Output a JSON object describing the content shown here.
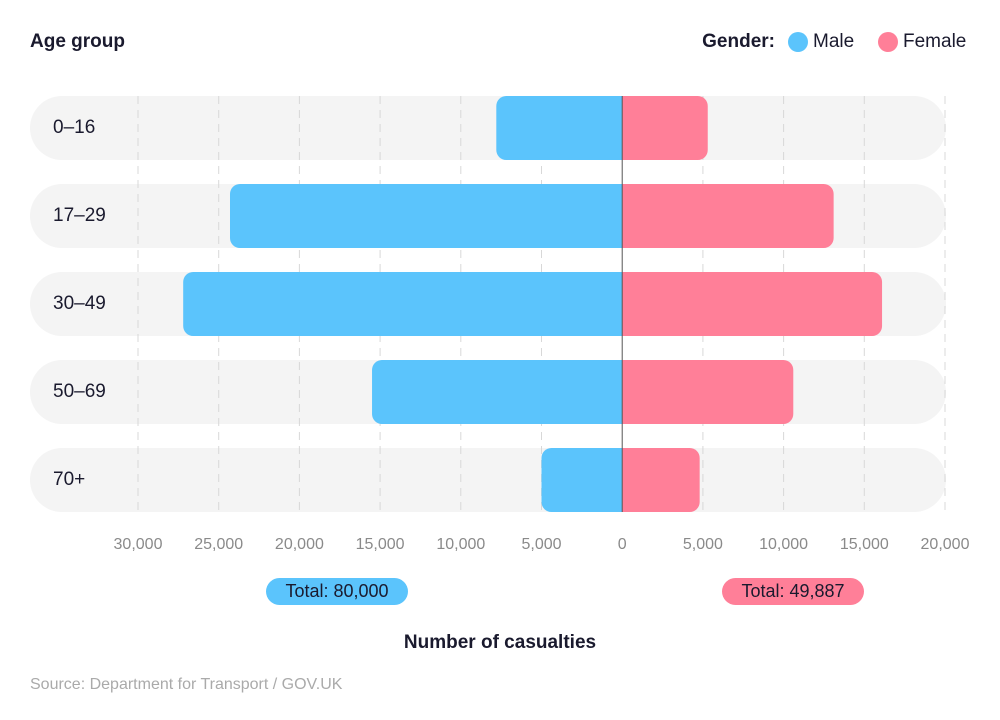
{
  "chart_data": {
    "type": "pyramid",
    "title": "Age group",
    "legend_title": "Gender:",
    "x_label": "Number of casualties",
    "source": "Source: Department for Transport / GOV.UK",
    "categories": [
      "0–16",
      "17–29",
      "30–49",
      "50–69",
      "70+"
    ],
    "series": [
      {
        "name": "Male",
        "color": "#5bc4fc",
        "side": "left",
        "values": [
          7800,
          24300,
          27200,
          15500,
          5000
        ],
        "total_label": "Total: 80,000"
      },
      {
        "name": "Female",
        "color": "#ff7f98",
        "side": "right",
        "values": [
          5300,
          13100,
          16100,
          10600,
          4800
        ],
        "total_label": "Total: 49,887"
      }
    ],
    "xlim": [
      -30000,
      20000
    ],
    "xticks": [
      {
        "value": -30000,
        "label": "30,000"
      },
      {
        "value": -25000,
        "label": "25,000"
      },
      {
        "value": -20000,
        "label": "20,000"
      },
      {
        "value": -15000,
        "label": "15,000"
      },
      {
        "value": -10000,
        "label": "10,000"
      },
      {
        "value": -5000,
        "label": "5,000"
      },
      0,
      {
        "value": 5000,
        "label": "5,000"
      },
      {
        "value": 10000,
        "label": "10,000"
      },
      {
        "value": 15000,
        "label": "15,000"
      },
      {
        "value": 20000,
        "label": "20,000"
      }
    ],
    "grid": true
  }
}
